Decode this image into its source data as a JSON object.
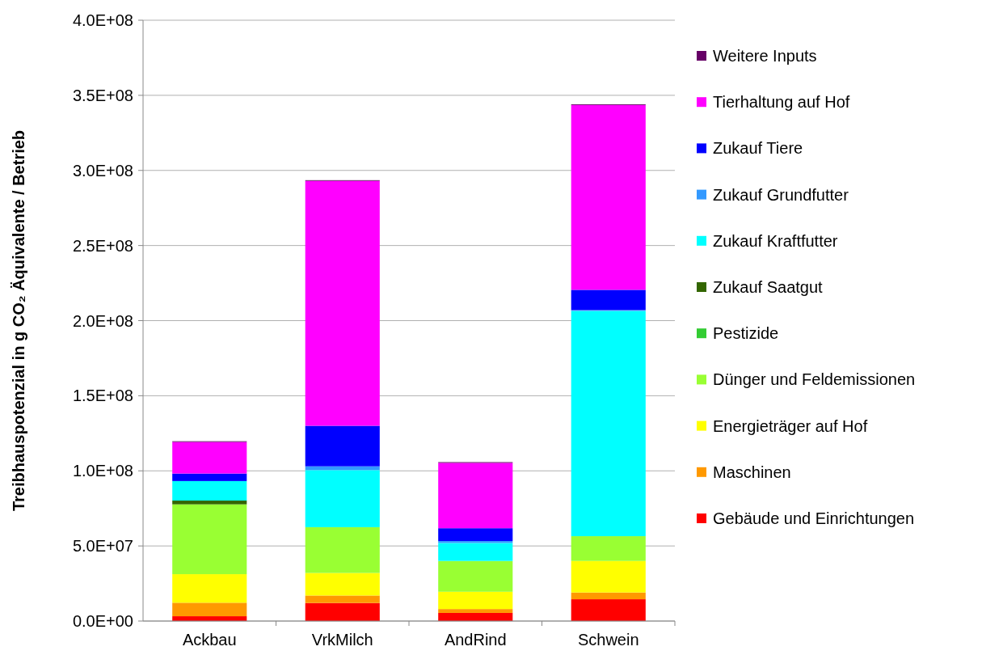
{
  "chart_data": {
    "type": "bar",
    "stacked": true,
    "ylabel": "Treibhauspotenzial  in g CO₂ Äquivalente / Betrieb",
    "categories": [
      "Ackbau",
      "VrkMilch",
      "AndRind",
      "Schwein"
    ],
    "series": [
      {
        "name": "Gebäude und Einrichtungen",
        "color": "#ff0000",
        "values": [
          3200000,
          12000000,
          5400000,
          14500000
        ]
      },
      {
        "name": "Maschinen",
        "color": "#ff9900",
        "values": [
          9000000,
          5000000,
          2600000,
          4500000
        ]
      },
      {
        "name": "Energieträger auf Hof",
        "color": "#ffff00",
        "values": [
          19000000,
          15000000,
          11500000,
          21000000
        ]
      },
      {
        "name": "Dünger und Feldemissionen",
        "color": "#99ff33",
        "values": [
          46500000,
          30500000,
          20500000,
          16500000
        ]
      },
      {
        "name": "Pestizide",
        "color": "#33cc33",
        "values": [
          0,
          0,
          0,
          0
        ]
      },
      {
        "name": "Zukauf Saatgut",
        "color": "#336600",
        "values": [
          2500000,
          0,
          0,
          0
        ]
      },
      {
        "name": "Zukauf Kraftfutter",
        "color": "#00ffff",
        "values": [
          13000000,
          38000000,
          12000000,
          150000000
        ]
      },
      {
        "name": "Zukauf Grundfutter",
        "color": "#3399ff",
        "values": [
          0,
          2500000,
          1300000,
          500000
        ]
      },
      {
        "name": "Zukauf Tiere",
        "color": "#0000ff",
        "values": [
          5000000,
          27000000,
          8500000,
          13500000
        ]
      },
      {
        "name": "Tierhaltung auf Hof",
        "color": "#ff00ff",
        "values": [
          21000000,
          163000000,
          43500000,
          123000000
        ]
      },
      {
        "name": "Weitere Inputs",
        "color": "#660066",
        "values": [
          500000,
          500000,
          500000,
          500000
        ]
      }
    ],
    "ylim": [
      0,
      400000000
    ],
    "yticks": [
      {
        "value": 0,
        "label": "0.0E+00"
      },
      {
        "value": 50000000,
        "label": "5.0E+07"
      },
      {
        "value": 100000000,
        "label": "1.0E+08"
      },
      {
        "value": 150000000,
        "label": "1.5E+08"
      },
      {
        "value": 200000000,
        "label": "2.0E+08"
      },
      {
        "value": 250000000,
        "label": "2.5E+08"
      },
      {
        "value": 300000000,
        "label": "3.0E+08"
      },
      {
        "value": 350000000,
        "label": "3.5E+08"
      },
      {
        "value": 400000000,
        "label": "4.0E+08"
      }
    ],
    "grid": "y",
    "legend": "right"
  }
}
